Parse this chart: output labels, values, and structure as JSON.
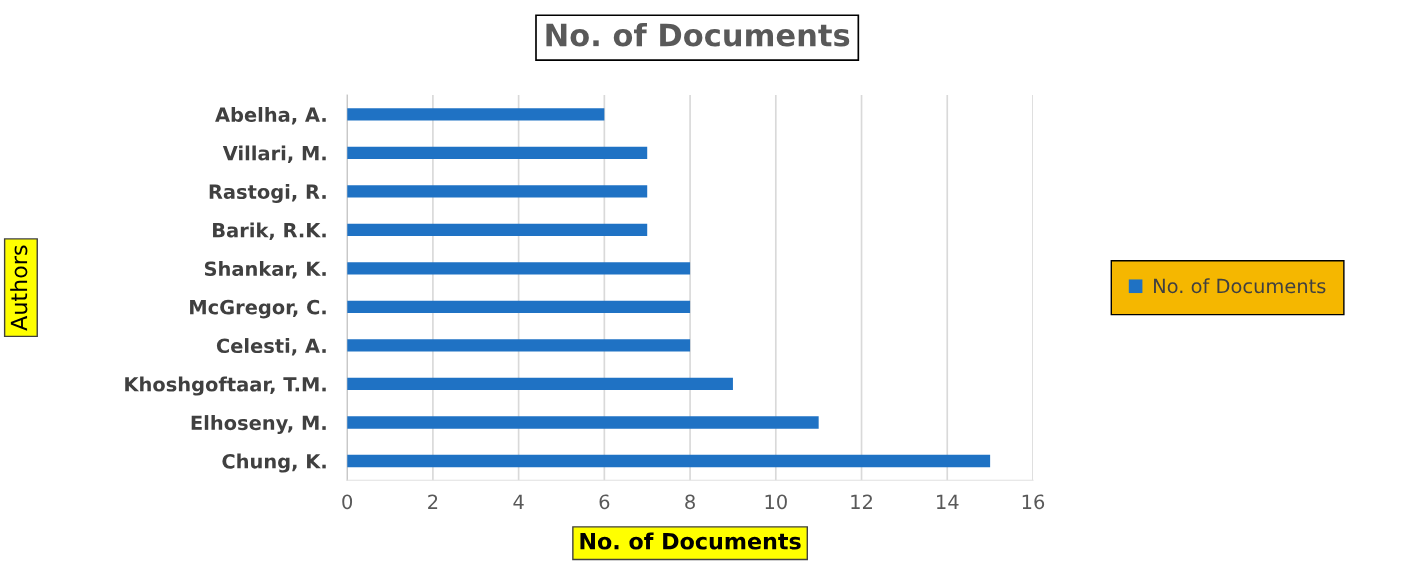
{
  "chart_data": {
    "type": "bar",
    "orientation": "horizontal",
    "title": "No. of Documents",
    "xlabel": "No. of Documents",
    "ylabel": "Authors",
    "categories": [
      "Abelha, A.",
      "Villari, M.",
      "Rastogi, R.",
      "Barik, R.K.",
      "Shankar, K.",
      "McGregor, C.",
      "Celesti, A.",
      "Khoshgoftaar, T.M.",
      "Elhoseny, M.",
      "Chung, K."
    ],
    "series": [
      {
        "name": "No. of Documents",
        "color": "#1f72c4",
        "values": [
          6,
          7,
          7,
          7,
          8,
          8,
          8,
          9,
          11,
          15
        ]
      }
    ],
    "xlim": [
      0,
      16
    ],
    "xticks": [
      0,
      2,
      4,
      6,
      8,
      10,
      12,
      14,
      16
    ],
    "grid": "x",
    "legend": "right"
  }
}
